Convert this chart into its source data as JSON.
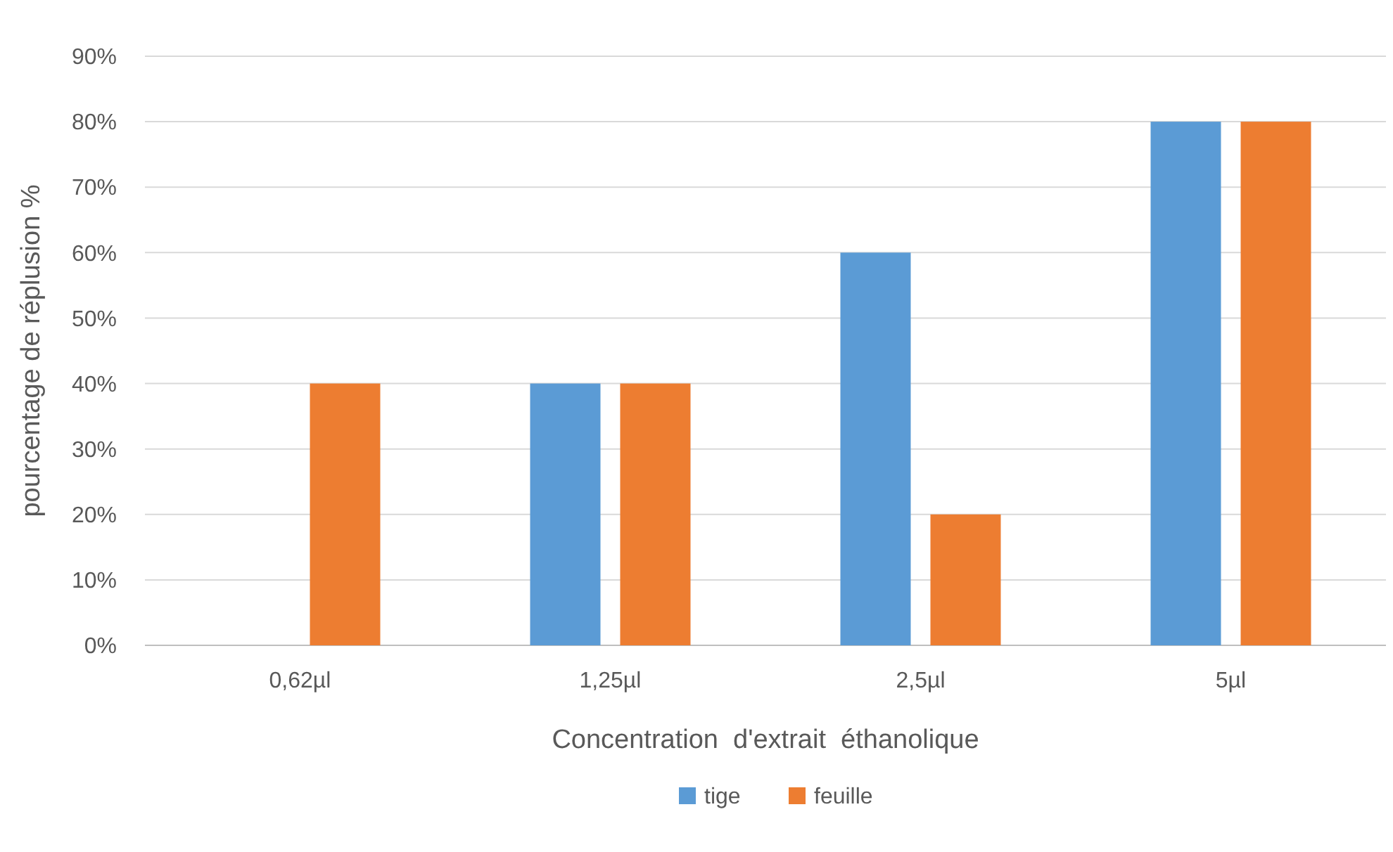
{
  "chart_data": {
    "type": "bar",
    "xlabel": "Concentration  d'extrait  éthanolique",
    "ylabel": "pourcentage de réplusion %",
    "categories": [
      "0,62µl",
      "1,25µl",
      "2,5µl",
      "5µl"
    ],
    "series": [
      {
        "name": "tige",
        "color": "#5b9bd5",
        "values": [
          0,
          40,
          60,
          80
        ]
      },
      {
        "name": "feuille",
        "color": "#ed7d31",
        "values": [
          40,
          40,
          20,
          80
        ]
      }
    ],
    "ylim": [
      0,
      90
    ],
    "yticks": [
      {
        "value": 0,
        "label": "0%"
      },
      {
        "value": 10,
        "label": "10%"
      },
      {
        "value": 20,
        "label": "20%"
      },
      {
        "value": 30,
        "label": "30%"
      },
      {
        "value": 40,
        "label": "40%"
      },
      {
        "value": 50,
        "label": "50%"
      },
      {
        "value": 60,
        "label": "60%"
      },
      {
        "value": 70,
        "label": "70%"
      },
      {
        "value": 80,
        "label": "80%"
      },
      {
        "value": 90,
        "label": "90%"
      }
    ],
    "grid": "y",
    "legend": "bottom"
  }
}
